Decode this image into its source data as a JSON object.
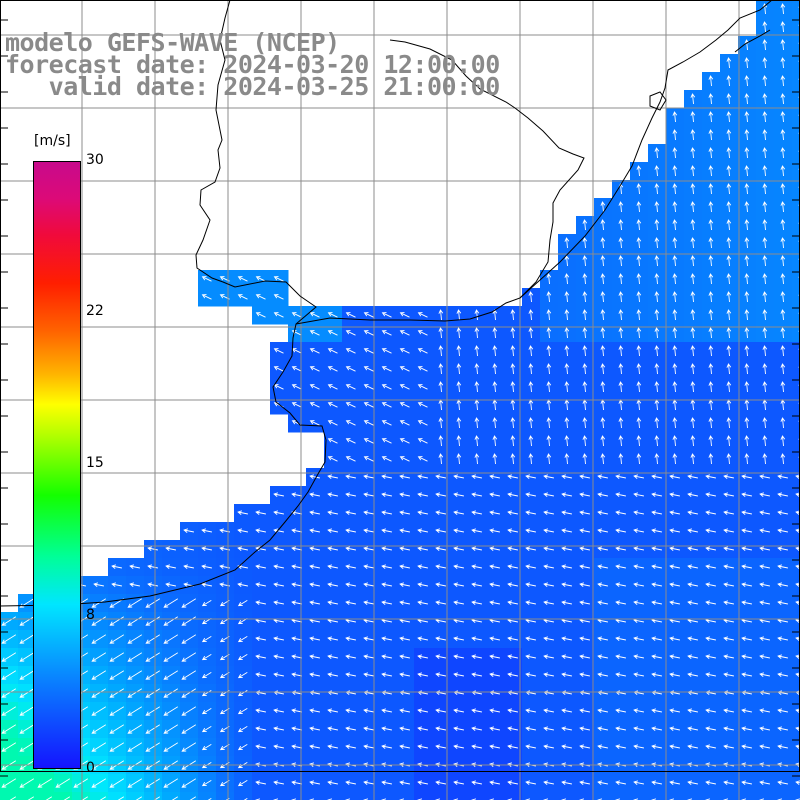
{
  "title": {
    "line1": "modelo GEFS-WAVE (NCEP)",
    "line2": "forecast date: 2024-03-20 12:00:00",
    "line3": "   valid date: 2024-03-25 21:00:00"
  },
  "colorbar": {
    "unit": "[m/s]",
    "ticks": [
      "30",
      "22",
      "15",
      "8",
      "0"
    ],
    "min": 0,
    "max": 30
  },
  "colors": {
    "land": "#ffffff",
    "grid": "#8c8c8c",
    "coast": "#000000",
    "arrows": "#ffffff",
    "title": "#8a8a8a"
  }
}
